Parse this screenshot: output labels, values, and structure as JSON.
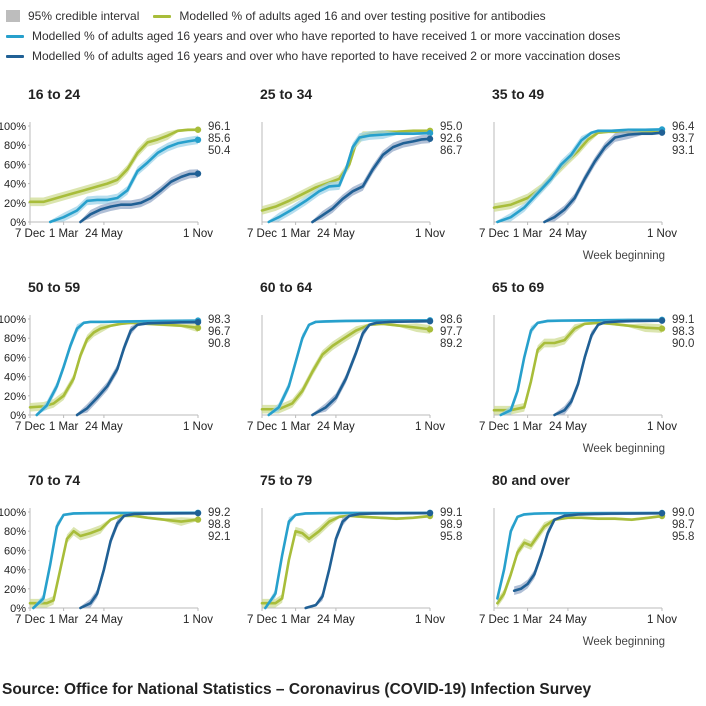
{
  "legend": {
    "ci_label": "95% credible interval",
    "antibody_label": "Modelled % of adults aged 16 and over testing positive for antibodies",
    "dose1_label": "Modelled % of adults aged 16 years and over who have reported to have received 1 or more vaccination doses",
    "dose2_label": "Modelled % of adults aged 16 years and over who have reported to have received 2 or more vaccination doses"
  },
  "colors": {
    "antibody": "#a8bd3a",
    "antibody_band": "#cfdc94",
    "dose1": "#27a0cc",
    "dose1_band": "#9fd3e8",
    "dose2": "#206095",
    "dose2_band": "#96aac8",
    "axis": "#bbbbbb",
    "text": "#222222"
  },
  "x_axis_note": "Week beginning",
  "source": "Source: Office for National Statistics – Coronavirus (COVID-19) Infection Survey",
  "chart_data": [
    {
      "type": "line",
      "title": "16 to 24",
      "x_ticks": [
        "7 Dec",
        "1 Mar",
        "24 May",
        "1 Nov"
      ],
      "y_ticks": [
        "0%",
        "20%",
        "40%",
        "60%",
        "80%",
        "100%"
      ],
      "ylim": [
        0,
        100
      ],
      "end_labels": [
        "96.1",
        "85.6",
        "50.4"
      ],
      "show_week_label": false,
      "series": [
        {
          "name": "antibodies",
          "x": [
            0,
            0.08,
            0.16,
            0.24,
            0.32,
            0.4,
            0.46,
            0.52,
            0.58,
            0.64,
            0.7,
            0.76,
            0.82,
            0.88,
            0.94,
            1.0
          ],
          "values": [
            21,
            21,
            25,
            29,
            33,
            37,
            40,
            44,
            55,
            72,
            83,
            86,
            90,
            95,
            96,
            96.1
          ]
        },
        {
          "name": "dose1",
          "x": [
            0.12,
            0.2,
            0.28,
            0.34,
            0.4,
            0.46,
            0.52,
            0.58,
            0.64,
            0.7,
            0.76,
            0.82,
            0.88,
            0.94,
            1.0
          ],
          "values": [
            0,
            5,
            12,
            22,
            23,
            23,
            25,
            33,
            53,
            62,
            72,
            78,
            82,
            84,
            85.6
          ]
        },
        {
          "name": "dose2",
          "x": [
            0.3,
            0.36,
            0.42,
            0.48,
            0.54,
            0.6,
            0.66,
            0.72,
            0.78,
            0.84,
            0.9,
            0.95,
            1.0
          ],
          "values": [
            0,
            8,
            13,
            16,
            18,
            18,
            20,
            25,
            33,
            42,
            47,
            50,
            50.4
          ]
        }
      ]
    },
    {
      "type": "line",
      "title": "25 to 34",
      "x_ticks": [
        "7 Dec",
        "1 Mar",
        "24 May",
        "1 Nov"
      ],
      "y_ticks": [],
      "ylim": [
        0,
        100
      ],
      "end_labels": [
        "95.0",
        "92.6",
        "86.7"
      ],
      "show_week_label": false,
      "series": [
        {
          "name": "antibodies",
          "x": [
            0,
            0.08,
            0.16,
            0.24,
            0.32,
            0.4,
            0.46,
            0.52,
            0.56,
            0.6,
            0.66,
            0.72,
            0.8,
            0.9,
            1.0
          ],
          "values": [
            12,
            16,
            22,
            29,
            36,
            41,
            45,
            60,
            82,
            90,
            93,
            94,
            94,
            95,
            95.0
          ]
        },
        {
          "name": "dose1",
          "x": [
            0.04,
            0.1,
            0.18,
            0.26,
            0.34,
            0.4,
            0.46,
            0.5,
            0.54,
            0.58,
            0.64,
            0.72,
            0.8,
            0.9,
            1.0
          ],
          "values": [
            0,
            5,
            13,
            22,
            32,
            37,
            38,
            55,
            78,
            88,
            90,
            91,
            92,
            92,
            92.6
          ]
        },
        {
          "name": "dose2",
          "x": [
            0.3,
            0.36,
            0.42,
            0.48,
            0.54,
            0.6,
            0.66,
            0.72,
            0.78,
            0.84,
            0.9,
            0.95,
            1.0
          ],
          "values": [
            0,
            7,
            14,
            24,
            32,
            37,
            55,
            70,
            78,
            82,
            84,
            86,
            86.7
          ]
        }
      ]
    },
    {
      "type": "line",
      "title": "35 to 49",
      "x_ticks": [
        "7 Dec",
        "1 Mar",
        "24 May",
        "1 Nov"
      ],
      "y_ticks": [],
      "ylim": [
        0,
        100
      ],
      "end_labels": [
        "96.4",
        "93.7",
        "93.1"
      ],
      "show_week_label": true,
      "series": [
        {
          "name": "antibodies",
          "x": [
            0,
            0.1,
            0.2,
            0.28,
            0.36,
            0.44,
            0.5,
            0.56,
            0.62,
            0.68,
            0.76,
            0.88,
            1.0
          ],
          "values": [
            15,
            18,
            25,
            35,
            50,
            64,
            74,
            86,
            93,
            94,
            94,
            93,
            93.7
          ]
        },
        {
          "name": "dose1",
          "x": [
            0.02,
            0.1,
            0.18,
            0.26,
            0.34,
            0.4,
            0.46,
            0.52,
            0.58,
            0.62,
            0.7,
            0.8,
            0.9,
            1.0
          ],
          "values": [
            0,
            5,
            15,
            30,
            45,
            60,
            70,
            85,
            93,
            95,
            95,
            96,
            96,
            96.4
          ]
        },
        {
          "name": "dose2",
          "x": [
            0.3,
            0.36,
            0.42,
            0.48,
            0.54,
            0.6,
            0.66,
            0.72,
            0.8,
            0.88,
            0.94,
            1.0
          ],
          "values": [
            0,
            5,
            13,
            25,
            45,
            63,
            78,
            88,
            91,
            92,
            92,
            93.1
          ]
        }
      ]
    },
    {
      "type": "line",
      "title": "50 to 59",
      "x_ticks": [
        "7 Dec",
        "1 Mar",
        "24 May",
        "1 Nov"
      ],
      "y_ticks": [
        "0%",
        "20%",
        "40%",
        "60%",
        "80%",
        "100%"
      ],
      "ylim": [
        0,
        100
      ],
      "end_labels": [
        "98.3",
        "96.7",
        "90.8"
      ],
      "show_week_label": false,
      "series": [
        {
          "name": "antibodies",
          "x": [
            0,
            0.08,
            0.14,
            0.2,
            0.26,
            0.3,
            0.34,
            0.38,
            0.42,
            0.48,
            0.54,
            0.6,
            0.7,
            0.8,
            0.9,
            1.0
          ],
          "values": [
            8,
            9,
            12,
            20,
            38,
            62,
            79,
            86,
            90,
            93,
            95,
            96,
            95,
            94,
            93,
            90.8
          ]
        },
        {
          "name": "dose1",
          "x": [
            0.04,
            0.1,
            0.16,
            0.2,
            0.24,
            0.28,
            0.32,
            0.36,
            0.44,
            0.6,
            0.8,
            1.0
          ],
          "values": [
            0,
            10,
            30,
            50,
            72,
            90,
            96,
            97,
            97,
            97.5,
            98,
            98.3
          ]
        },
        {
          "name": "dose2",
          "x": [
            0.28,
            0.34,
            0.4,
            0.46,
            0.52,
            0.56,
            0.6,
            0.64,
            0.7,
            0.8,
            0.9,
            1.0
          ],
          "values": [
            0,
            7,
            18,
            30,
            48,
            70,
            88,
            94,
            95.5,
            96,
            96.5,
            96.7
          ]
        }
      ]
    },
    {
      "type": "line",
      "title": "60 to 64",
      "x_ticks": [
        "7 Dec",
        "1 Mar",
        "24 May",
        "1 Nov"
      ],
      "y_ticks": [],
      "ylim": [
        0,
        100
      ],
      "end_labels": [
        "98.6",
        "97.7",
        "89.2"
      ],
      "show_week_label": false,
      "series": [
        {
          "name": "antibodies",
          "x": [
            0,
            0.1,
            0.18,
            0.24,
            0.3,
            0.36,
            0.42,
            0.48,
            0.56,
            0.64,
            0.72,
            0.82,
            0.92,
            1.0
          ],
          "values": [
            6,
            6,
            12,
            25,
            45,
            63,
            72,
            79,
            88,
            94,
            95,
            93,
            91,
            89.2
          ]
        },
        {
          "name": "dose1",
          "x": [
            0.04,
            0.1,
            0.16,
            0.2,
            0.24,
            0.28,
            0.32,
            0.38,
            0.5,
            0.7,
            1.0
          ],
          "values": [
            0,
            8,
            30,
            55,
            80,
            94,
            97,
            97.5,
            98,
            98.3,
            98.6
          ]
        },
        {
          "name": "dose2",
          "x": [
            0.3,
            0.38,
            0.44,
            0.5,
            0.56,
            0.6,
            0.64,
            0.68,
            0.76,
            0.88,
            1.0
          ],
          "values": [
            0,
            8,
            18,
            38,
            65,
            85,
            94,
            96,
            97,
            97.4,
            97.7
          ]
        }
      ]
    },
    {
      "type": "line",
      "title": "65 to 69",
      "x_ticks": [
        "7 Dec",
        "1 Mar",
        "24 May",
        "1 Nov"
      ],
      "y_ticks": [],
      "ylim": [
        0,
        100
      ],
      "end_labels": [
        "99.1",
        "98.3",
        "90.0"
      ],
      "show_week_label": true,
      "series": [
        {
          "name": "antibodies",
          "x": [
            0,
            0.1,
            0.18,
            0.22,
            0.26,
            0.3,
            0.36,
            0.42,
            0.48,
            0.54,
            0.62,
            0.7,
            0.8,
            0.9,
            1.0
          ],
          "values": [
            5,
            5,
            8,
            35,
            68,
            75,
            75,
            78,
            90,
            95,
            96,
            95,
            93,
            91,
            90.0
          ]
        },
        {
          "name": "dose1",
          "x": [
            0.04,
            0.1,
            0.14,
            0.18,
            0.22,
            0.26,
            0.32,
            0.4,
            0.6,
            0.8,
            1.0
          ],
          "values": [
            0,
            5,
            25,
            60,
            88,
            96,
            98,
            98.3,
            98.6,
            99,
            99.1
          ]
        },
        {
          "name": "dose2",
          "x": [
            0.36,
            0.42,
            0.46,
            0.5,
            0.54,
            0.58,
            0.62,
            0.66,
            0.74,
            0.86,
            1.0
          ],
          "values": [
            0,
            5,
            14,
            32,
            60,
            83,
            94,
            96.5,
            97.5,
            98,
            98.3
          ]
        }
      ]
    },
    {
      "type": "line",
      "title": "70 to 74",
      "x_ticks": [
        "7 Dec",
        "1 Mar",
        "24 May",
        "1 Nov"
      ],
      "y_ticks": [
        "0%",
        "20%",
        "40%",
        "60%",
        "80%",
        "100%"
      ],
      "ylim": [
        0,
        100
      ],
      "end_labels": [
        "99.2",
        "98.8",
        "92.1"
      ],
      "show_week_label": false,
      "series": [
        {
          "name": "antibodies",
          "x": [
            0,
            0.1,
            0.14,
            0.18,
            0.22,
            0.26,
            0.3,
            0.36,
            0.42,
            0.48,
            0.54,
            0.62,
            0.7,
            0.8,
            0.9,
            1.0
          ],
          "values": [
            5,
            5,
            8,
            40,
            72,
            80,
            75,
            78,
            82,
            92,
            96,
            96,
            94,
            92,
            90,
            92.1
          ]
        },
        {
          "name": "dose1",
          "x": [
            0.02,
            0.08,
            0.12,
            0.16,
            0.2,
            0.26,
            0.34,
            0.5,
            0.7,
            1.0
          ],
          "values": [
            0,
            10,
            45,
            85,
            97,
            98.5,
            98.8,
            99,
            99.1,
            99.2
          ]
        },
        {
          "name": "dose2",
          "x": [
            0.3,
            0.36,
            0.4,
            0.44,
            0.48,
            0.52,
            0.56,
            0.62,
            0.7,
            0.84,
            1.0
          ],
          "values": [
            0,
            5,
            15,
            40,
            70,
            88,
            96,
            98,
            98.3,
            98.6,
            98.8
          ]
        }
      ]
    },
    {
      "type": "line",
      "title": "75 to 79",
      "x_ticks": [
        "7 Dec",
        "1 Mar",
        "24 May",
        "1 Nov"
      ],
      "y_ticks": [],
      "ylim": [
        0,
        100
      ],
      "end_labels": [
        "99.1",
        "98.9",
        "95.8"
      ],
      "show_week_label": false,
      "series": [
        {
          "name": "antibodies",
          "x": [
            0,
            0.08,
            0.12,
            0.16,
            0.2,
            0.24,
            0.28,
            0.34,
            0.4,
            0.46,
            0.52,
            0.6,
            0.7,
            0.8,
            0.9,
            1.0
          ],
          "values": [
            5,
            5,
            10,
            50,
            80,
            78,
            72,
            80,
            90,
            95,
            96,
            95,
            94,
            93,
            94,
            95.8
          ]
        },
        {
          "name": "dose1",
          "x": [
            0.02,
            0.08,
            0.12,
            0.16,
            0.2,
            0.26,
            0.34,
            0.5,
            0.7,
            1.0
          ],
          "values": [
            0,
            15,
            55,
            90,
            97,
            98.5,
            98.8,
            99,
            99,
            99.1
          ]
        },
        {
          "name": "dose2",
          "x": [
            0.26,
            0.32,
            0.36,
            0.4,
            0.44,
            0.48,
            0.52,
            0.58,
            0.66,
            0.8,
            1.0
          ],
          "values": [
            0,
            3,
            12,
            40,
            72,
            90,
            96,
            98,
            98.5,
            98.7,
            98.9
          ]
        }
      ]
    },
    {
      "type": "line",
      "title": "80 and over",
      "x_ticks": [
        "7 Dec",
        "1 Mar",
        "24 May",
        "1 Nov"
      ],
      "y_ticks": [],
      "ylim": [
        0,
        100
      ],
      "end_labels": [
        "99.0",
        "98.7",
        "95.8"
      ],
      "show_week_label": true,
      "series": [
        {
          "name": "antibodies",
          "x": [
            0.02,
            0.06,
            0.1,
            0.14,
            0.18,
            0.22,
            0.26,
            0.3,
            0.36,
            0.44,
            0.52,
            0.62,
            0.72,
            0.82,
            0.92,
            1.0
          ],
          "values": [
            5,
            15,
            35,
            58,
            68,
            65,
            75,
            85,
            92,
            94,
            94,
            93,
            93,
            92,
            94,
            95.8
          ]
        },
        {
          "name": "dose1",
          "x": [
            0.02,
            0.06,
            0.1,
            0.14,
            0.18,
            0.24,
            0.32,
            0.5,
            0.7,
            1.0
          ],
          "values": [
            10,
            40,
            80,
            95,
            97.5,
            98.3,
            98.7,
            98.8,
            98.9,
            99.0
          ]
        },
        {
          "name": "dose2",
          "x": [
            0.12,
            0.16,
            0.2,
            0.24,
            0.28,
            0.32,
            0.36,
            0.42,
            0.5,
            0.6,
            0.7,
            0.84,
            1.0
          ],
          "values": [
            18,
            20,
            25,
            35,
            55,
            78,
            92,
            96,
            97.5,
            98,
            98.3,
            98.5,
            98.7
          ]
        }
      ]
    }
  ]
}
